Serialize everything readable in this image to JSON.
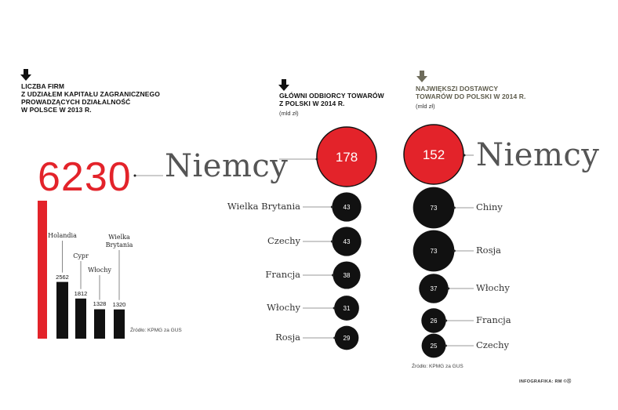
{
  "colors": {
    "accent": "#e3232a",
    "dark": "#111111",
    "gray_arrow": "#6d6b5b",
    "text_gray": "#555555"
  },
  "firms": {
    "title": [
      "LICZBA FIRM",
      "Z UDZIAŁEM KAPITAŁU ZAGRANICZNEGO",
      "PROWADZĄCYCH DZIAŁALNOŚĆ",
      "W POLSCE W 2013 R."
    ],
    "total": "6230",
    "top_country": "Niemcy",
    "source": "Źródło: KPMG za GUS"
  },
  "receivers": {
    "title": [
      "GŁÓWNI ODBIORCY TOWARÓW",
      "Z POLSKI W 2014 R."
    ],
    "unit": "(mld zł)"
  },
  "suppliers": {
    "title": [
      "NAJWIĘKSZI DOSTAWCY",
      "TOWARÓW DO POLSKI W 2014 R."
    ],
    "unit": "(mld zł)",
    "source": "Źródło: KPMG za GUS"
  },
  "credit": "INFOGRAFIKA: RM",
  "chart_data": [
    {
      "type": "bar",
      "title": "LICZBA FIRM Z UDZIAŁEM KAPITAŁU ZAGRANICZNEGO PROWADZĄCYCH DZIAŁALNOŚĆ W POLSCE W 2013 R.",
      "categories": [
        "Niemcy",
        "Holandia",
        "Cypr",
        "Włochy",
        "Wielka Brytania"
      ],
      "values": [
        6230,
        2562,
        1812,
        1328,
        1320
      ],
      "labels": [
        "Niemcy",
        "Holandia",
        "Cypr",
        "Włochy",
        "Wielka\nBrytania"
      ],
      "highlight": "Niemcy"
    },
    {
      "type": "bubble",
      "title": "GŁÓWNI ODBIORCY TOWARÓW Z POLSKI W 2014 R.",
      "unit": "(mld zł)",
      "categories": [
        "Niemcy",
        "Wielka Brytania",
        "Czechy",
        "Francja",
        "Włochy",
        "Rosja"
      ],
      "values": [
        178,
        43,
        43,
        38,
        31,
        29
      ],
      "highlight": "Niemcy"
    },
    {
      "type": "bubble",
      "title": "NAJWIĘKSZI DOSTAWCY TOWARÓW DO POLSKI W 2014 R.",
      "unit": "(mld zł)",
      "categories": [
        "Niemcy",
        "Chiny",
        "Rosja",
        "Włochy",
        "Francja",
        "Czechy"
      ],
      "values": [
        152,
        73,
        73,
        37,
        26,
        25
      ],
      "highlight": "Niemcy"
    }
  ]
}
